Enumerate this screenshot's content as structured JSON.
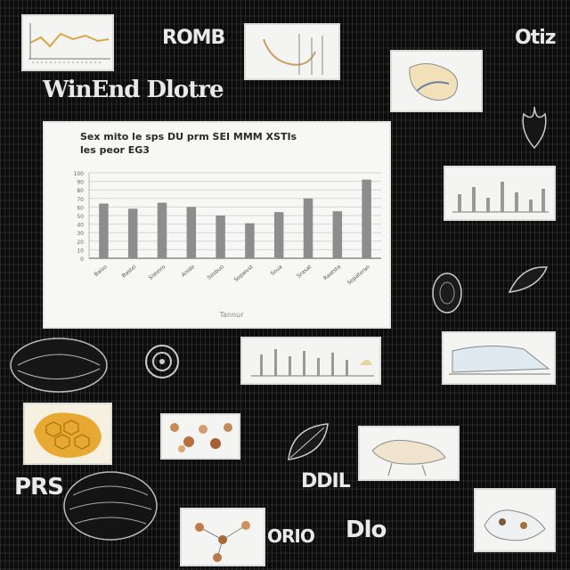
{
  "collage": {
    "banner_text": "WinEnd Dlotre",
    "scribbles": [
      "ROMB",
      "PRS",
      "Otiz",
      "DDIL",
      "ORIO",
      "Dlo"
    ]
  },
  "chart_data": {
    "type": "bar",
    "title": "Sex mito le sps DU prm SEI MMM XSTIs",
    "subtitle": "les peor EG3",
    "xlabel": "Tannur",
    "ylabel": "",
    "ylim": [
      0,
      100
    ],
    "yticks": [
      "0",
      "10",
      "20",
      "30",
      "40",
      "50",
      "60",
      "70",
      "80",
      "90",
      "100"
    ],
    "categories": [
      "Baiso",
      "Bastei",
      "Sisteiro",
      "Anide",
      "Sesbuo",
      "Sepaivst",
      "Soua",
      "Srasat",
      "Raatsta",
      "Sepatoran"
    ],
    "values": [
      64,
      58,
      65,
      60,
      50,
      41,
      54,
      70,
      55,
      92
    ],
    "bar_color": "#8d8d8d",
    "grid": true
  }
}
